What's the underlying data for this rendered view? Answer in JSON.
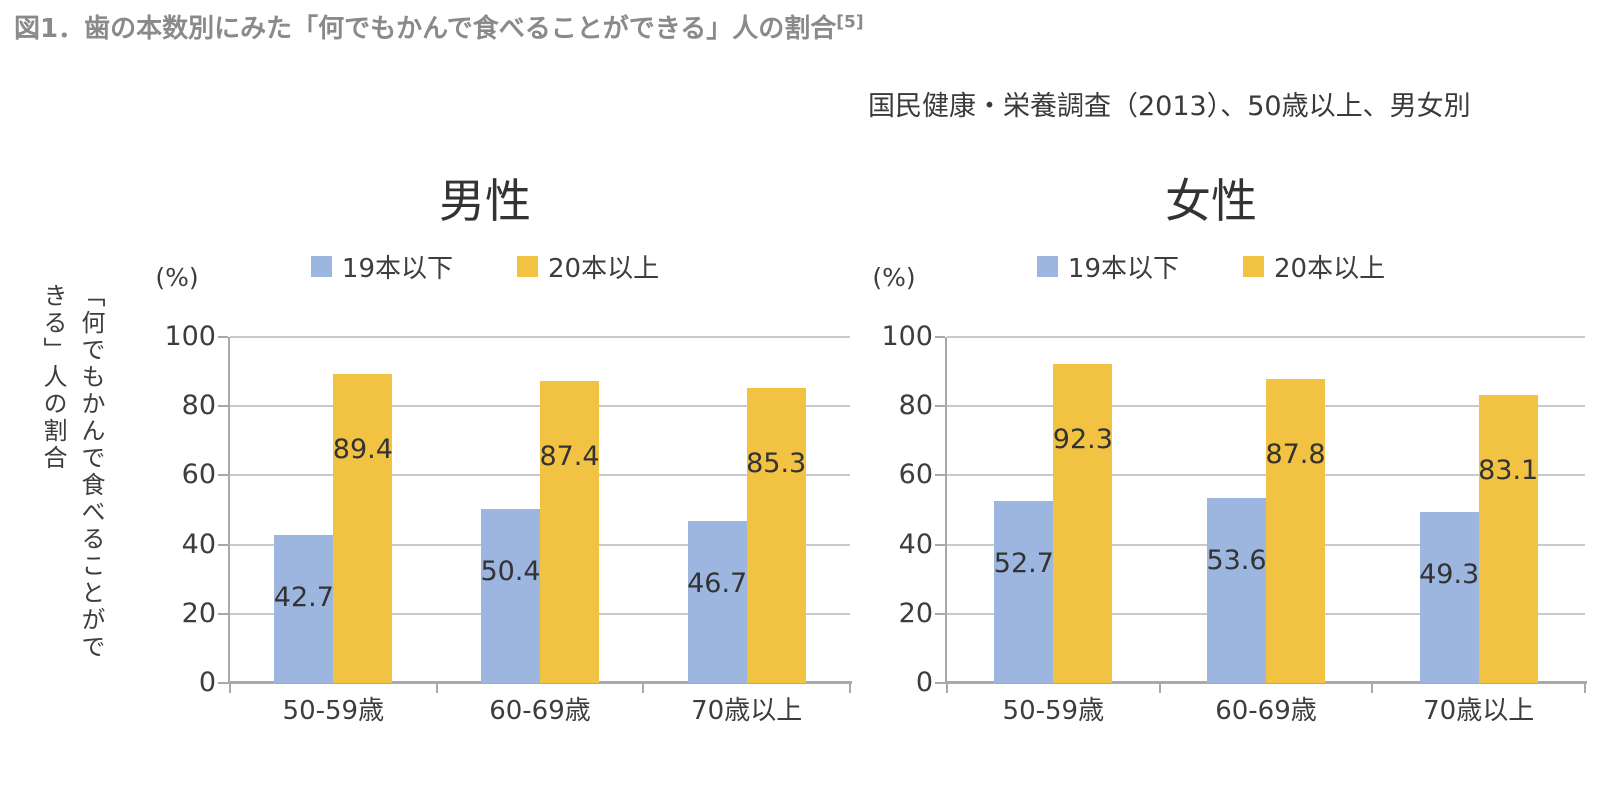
{
  "figure": {
    "title": "図1．歯の本数別にみた「何でもかんで食べることができる」人の割合",
    "title_superscript": "[5]",
    "subtitle": "国民健康・栄養調査（2013）、50歳以上、男女別",
    "y_axis_title": "「何でもかんで食べることができる」人の割合",
    "unit_label": "(%)"
  },
  "legend": {
    "items": [
      {
        "label": "19本以下",
        "color": "#9cb6df"
      },
      {
        "label": "20本以上",
        "color": "#f2c342"
      }
    ]
  },
  "colors": {
    "series_blue": "#9cb6df",
    "series_yellow": "#f2c342",
    "gridline": "#c9c9c9",
    "axis": "#a9a9a9",
    "title_gray": "#8a8a8a"
  },
  "chart_data": [
    {
      "type": "bar",
      "title": "男性",
      "categories": [
        "50-59歳",
        "60-69歳",
        "70歳以上"
      ],
      "series": [
        {
          "name": "19本以下",
          "color": "#9cb6df",
          "values": [
            42.7,
            50.4,
            46.7
          ]
        },
        {
          "name": "20本以上",
          "color": "#f2c342",
          "values": [
            89.4,
            87.4,
            85.3
          ]
        }
      ],
      "ylabel": "「何でもかんで食べることができる」人の割合",
      "unit": "(%)",
      "ylim": [
        0,
        100
      ],
      "yticks": [
        0,
        20,
        40,
        60,
        80,
        100
      ],
      "grid": true,
      "legend_position": "top"
    },
    {
      "type": "bar",
      "title": "女性",
      "categories": [
        "50-59歳",
        "60-69歳",
        "70歳以上"
      ],
      "series": [
        {
          "name": "19本以下",
          "color": "#9cb6df",
          "values": [
            52.7,
            53.6,
            49.3
          ]
        },
        {
          "name": "20本以上",
          "color": "#f2c342",
          "values": [
            92.3,
            87.8,
            83.1
          ]
        }
      ],
      "ylabel": "「何でもかんで食べることができる」人の割合",
      "unit": "(%)",
      "ylim": [
        0,
        100
      ],
      "yticks": [
        0,
        20,
        40,
        60,
        80,
        100
      ],
      "grid": true,
      "legend_position": "top"
    }
  ]
}
